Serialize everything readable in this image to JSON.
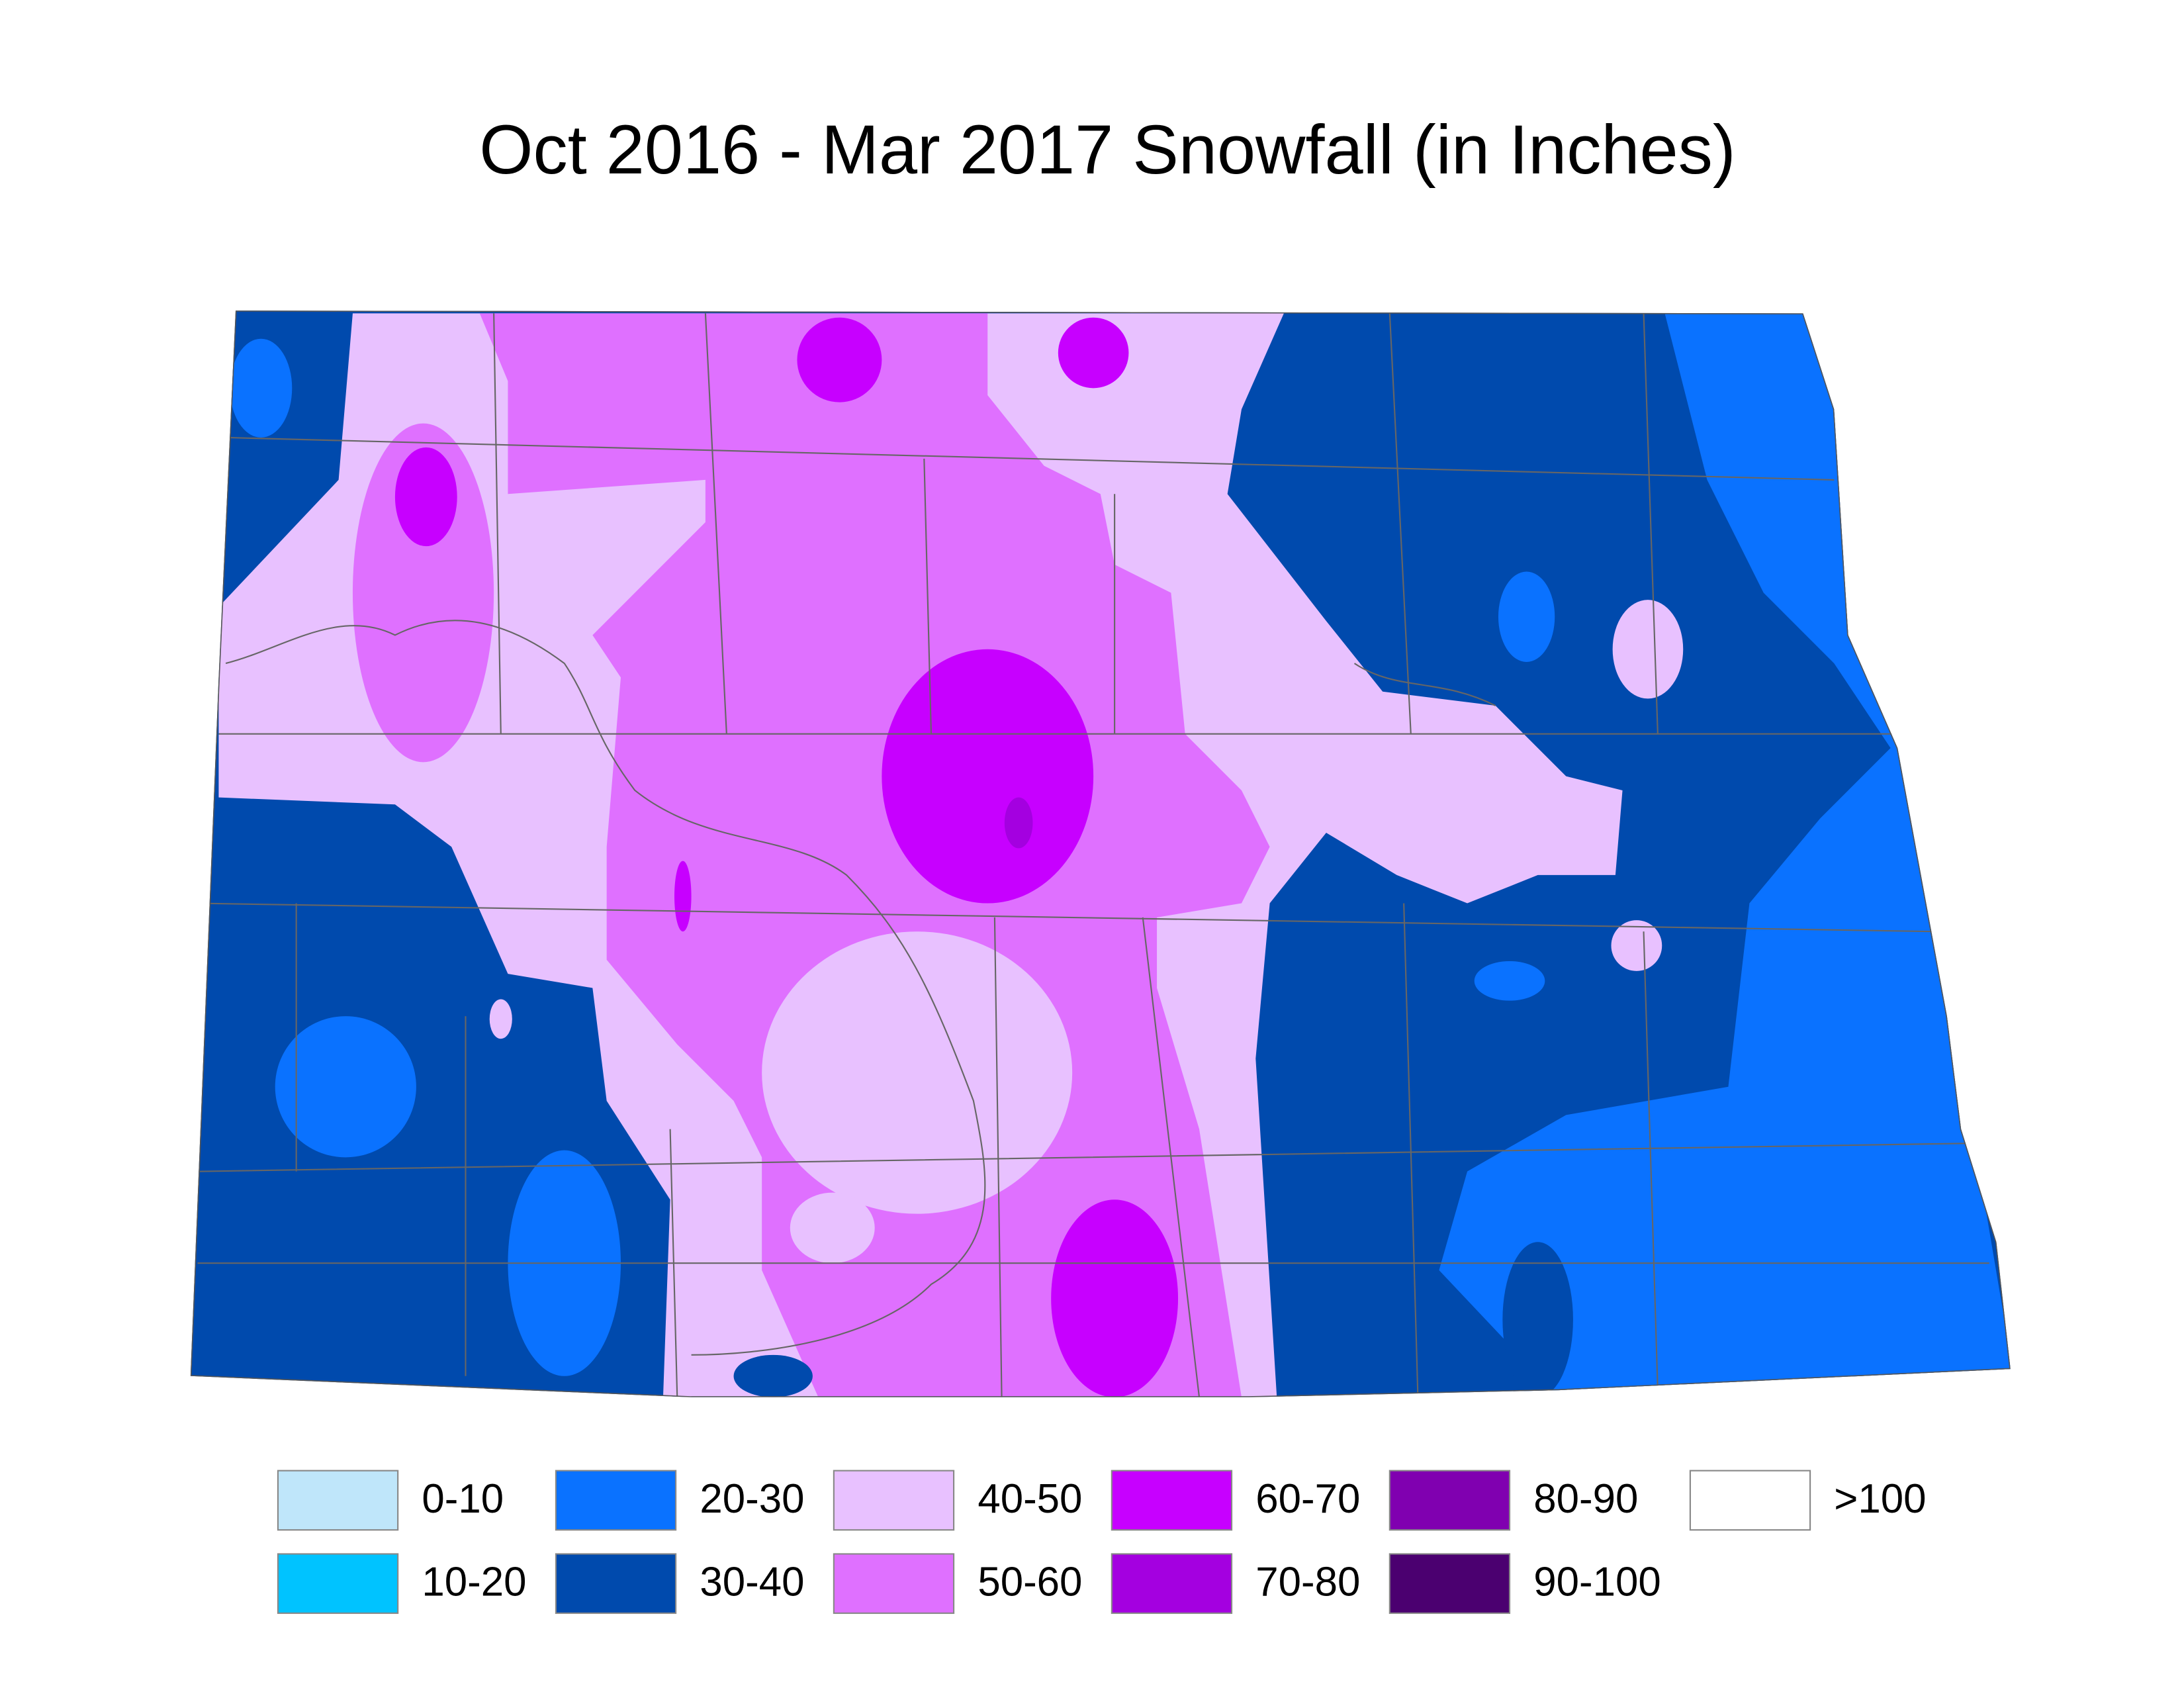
{
  "title": "Oct 2016 - Mar 2017 Snowfall (in Inches)",
  "legend": [
    {
      "label": "0-10",
      "color": "#bfe6fa"
    },
    {
      "label": "10-20",
      "color": "#00c3ff"
    },
    {
      "label": "20-30",
      "color": "#0a72ff"
    },
    {
      "label": "30-40",
      "color": "#004aad"
    },
    {
      "label": "40-50",
      "color": "#e8c1ff"
    },
    {
      "label": "50-60",
      "color": "#df70ff"
    },
    {
      "label": "60-70",
      "color": "#c700ff"
    },
    {
      "label": "70-80",
      "color": "#a400e0"
    },
    {
      "label": "80-90",
      "color": "#8000b0"
    },
    {
      "label": "90-100",
      "color": "#4b0070"
    },
    {
      "label": ">100",
      "color": "#ffffff"
    }
  ]
}
